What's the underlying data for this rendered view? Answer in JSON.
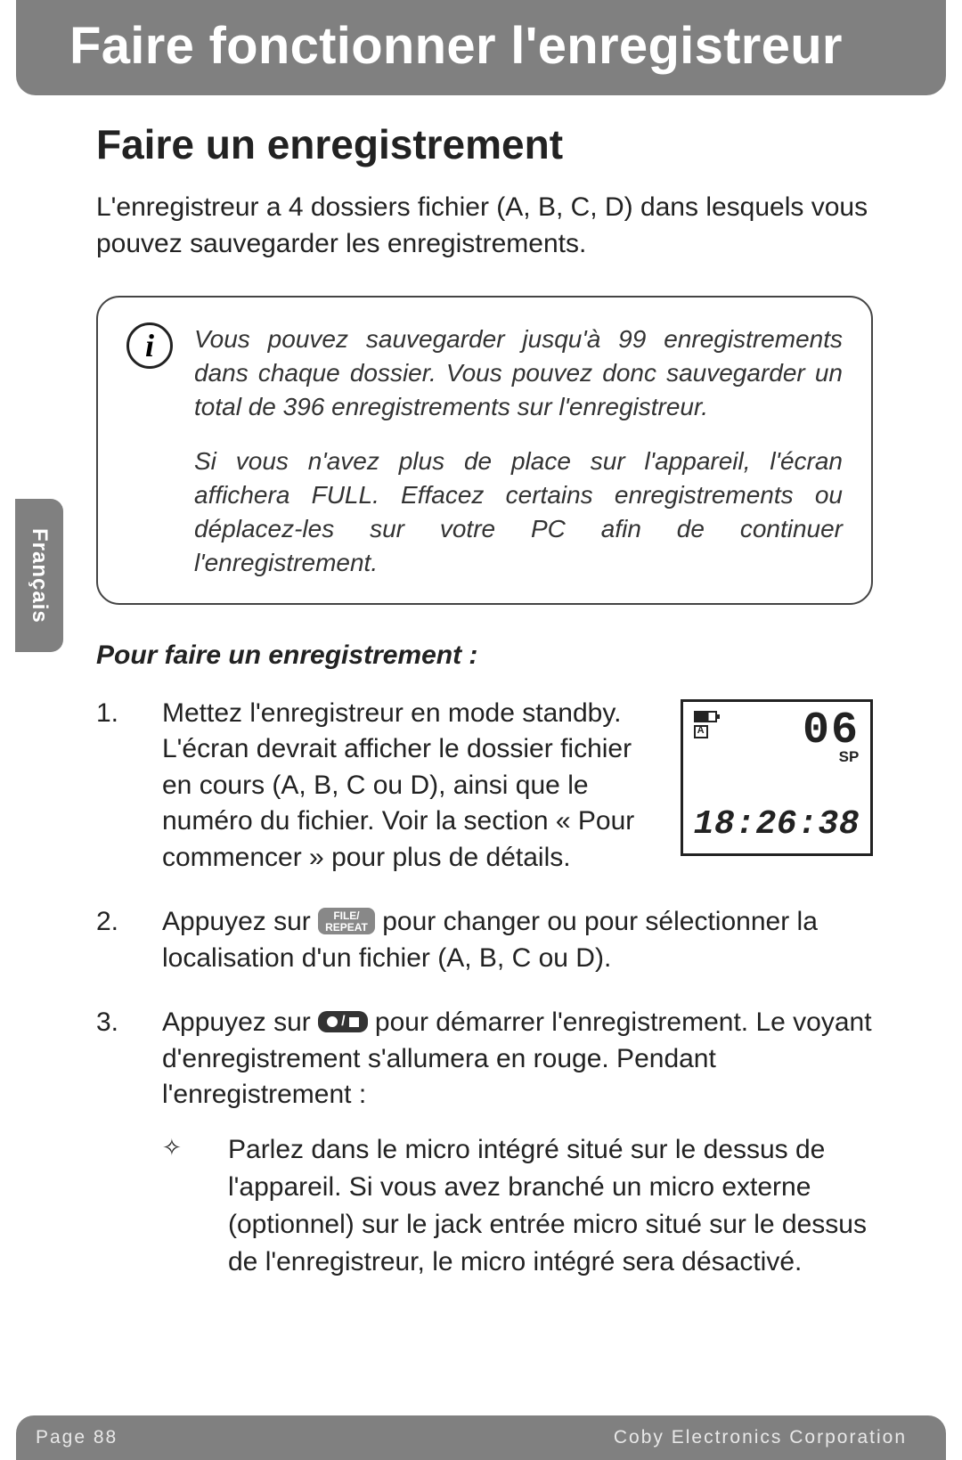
{
  "header": {
    "title": "Faire fonctionner l'enregistreur"
  },
  "sideTab": {
    "label": "Français"
  },
  "section": {
    "heading": "Faire un enregistrement",
    "intro": "L'enregistreur a 4 dossiers fichier (A, B, C, D) dans lesquels vous pouvez sauvegarder les enregistrements.",
    "info": {
      "para1": "Vous pouvez sauvegarder jusqu'à 99 enregistrements dans chaque dossier. Vous pouvez donc sauvegarder un total de 396 enregistrements sur l'enregistreur.",
      "para2": "Si vous n'avez plus de place sur l'appareil, l'écran affichera FULL. Effacez certains enregistrements ou déplacez-les sur votre PC afin de continuer l'enregistrement."
    },
    "subheading": "Pour faire un enregistrement :",
    "steps": {
      "s1": {
        "num": "1.",
        "text": "Mettez l'enregistreur en mode standby. L'écran devrait afficher le dossier fichier en cours (A, B, C ou D), ainsi que le numéro du fichier. Voir la section « Pour commencer » pour plus de détails."
      },
      "s2": {
        "num": "2.",
        "pre": "Appuyez sur ",
        "pill": "FILE/\nREPEAT",
        "post": " pour changer ou pour sélectionner la localisation d'un fichier (A, B, C ou D)."
      },
      "s3": {
        "num": "3.",
        "pre": "Appuyez sur ",
        "post": " pour démarrer l'enregistrement. Le voyant d'enregistrement s'allumera en rouge. Pendant l'enregistrement :",
        "sub": {
          "marker": "✧",
          "text": "Parlez dans le micro intégré situé sur le dessus de l'appareil. Si vous avez branché un micro externe (optionnel) sur le jack entrée micro situé sur le dessus de l'enregistreur, le micro intégré sera désactivé."
        }
      }
    },
    "lcd": {
      "folder": "A",
      "fileNum": "06",
      "mode": "SP",
      "time": "18:26:38"
    }
  },
  "footer": {
    "pageLabel": "Page 88",
    "company": "Coby Electronics Corporation"
  },
  "colors": {
    "headerBg": "#808080",
    "headerText": "#ffffff",
    "bodyText": "#222222",
    "infoBorder": "#444444",
    "pillBg": "#888888",
    "pillDark": "#333333",
    "footerText": "#e8e8e8"
  }
}
